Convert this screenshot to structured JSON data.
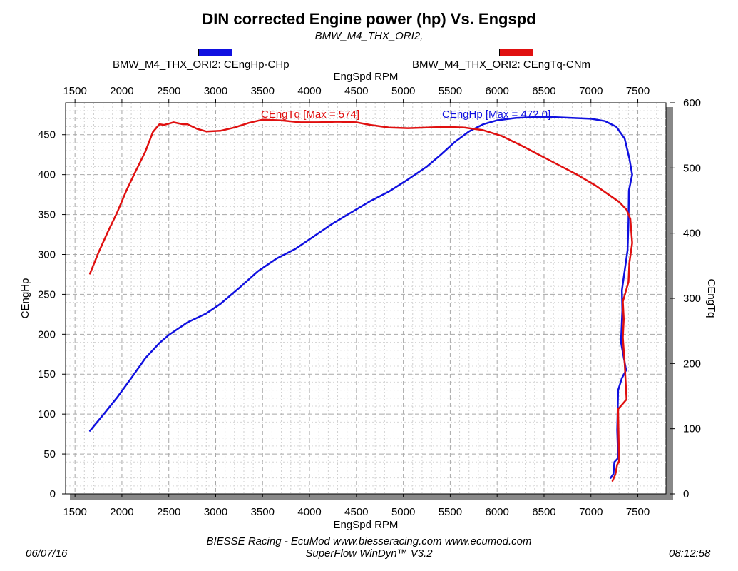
{
  "chart_data": {
    "type": "line",
    "title": "DIN corrected Engine power (hp) Vs. Engspd",
    "subtitle": "BMW_M4_THX_ORI2,",
    "xlabel": "EngSpd RPM",
    "ylabel_left": "CEngHp",
    "ylabel_right": "CEngTq",
    "xlim": [
      1400,
      7800
    ],
    "x_ticks": [
      1500,
      2000,
      2500,
      3000,
      3500,
      4000,
      4500,
      5000,
      5500,
      6000,
      6500,
      7000,
      7500
    ],
    "ylim_left": [
      0,
      490
    ],
    "y_ticks_left": [
      0,
      50,
      100,
      150,
      200,
      250,
      300,
      350,
      400,
      450
    ],
    "ylim_right": [
      0,
      600
    ],
    "y_ticks_right": [
      0,
      100,
      200,
      300,
      400,
      500,
      600
    ],
    "grid": true,
    "series": [
      {
        "name": "BMW_M4_THX_ORI2: CEngHp-CHp",
        "axis": "left",
        "color": "#1010e0",
        "annotation": "CEngHp [Max = 472.0]",
        "points": [
          [
            1660,
            79
          ],
          [
            1800,
            99
          ],
          [
            1950,
            121
          ],
          [
            2100,
            145
          ],
          [
            2250,
            170
          ],
          [
            2400,
            189
          ],
          [
            2500,
            199
          ],
          [
            2700,
            215
          ],
          [
            2900,
            226
          ],
          [
            3050,
            238
          ],
          [
            3250,
            258
          ],
          [
            3450,
            279
          ],
          [
            3650,
            295
          ],
          [
            3850,
            307
          ],
          [
            4050,
            323
          ],
          [
            4250,
            339
          ],
          [
            4450,
            353
          ],
          [
            4650,
            367
          ],
          [
            4850,
            379
          ],
          [
            5050,
            394
          ],
          [
            5250,
            410
          ],
          [
            5400,
            425
          ],
          [
            5550,
            441
          ],
          [
            5700,
            454
          ],
          [
            5850,
            463
          ],
          [
            6000,
            468
          ],
          [
            6200,
            471
          ],
          [
            6400,
            472
          ],
          [
            6600,
            472
          ],
          [
            6800,
            471
          ],
          [
            7000,
            470
          ],
          [
            7150,
            467
          ],
          [
            7270,
            460
          ],
          [
            7360,
            445
          ],
          [
            7410,
            420
          ],
          [
            7440,
            400
          ],
          [
            7405,
            380
          ],
          [
            7400,
            340
          ],
          [
            7390,
            305
          ],
          [
            7360,
            280
          ],
          [
            7330,
            255
          ],
          [
            7335,
            230
          ],
          [
            7320,
            190
          ],
          [
            7375,
            155
          ],
          [
            7330,
            145
          ],
          [
            7290,
            130
          ],
          [
            7280,
            80
          ],
          [
            7290,
            45
          ],
          [
            7250,
            40
          ],
          [
            7240,
            25
          ],
          [
            7210,
            20
          ]
        ]
      },
      {
        "name": "BMW_M4_THX_ORI2: CEngTq-CNm",
        "axis": "right",
        "color": "#e01010",
        "annotation": "CEngTq [Max = 574]",
        "points": [
          [
            1660,
            338
          ],
          [
            1750,
            370
          ],
          [
            1850,
            402
          ],
          [
            1950,
            432
          ],
          [
            2050,
            466
          ],
          [
            2150,
            496
          ],
          [
            2250,
            525
          ],
          [
            2330,
            555
          ],
          [
            2400,
            567
          ],
          [
            2450,
            566
          ],
          [
            2550,
            570
          ],
          [
            2650,
            567
          ],
          [
            2700,
            567
          ],
          [
            2800,
            560
          ],
          [
            2900,
            556
          ],
          [
            3050,
            557
          ],
          [
            3200,
            562
          ],
          [
            3350,
            569
          ],
          [
            3500,
            574
          ],
          [
            3700,
            573
          ],
          [
            3900,
            570
          ],
          [
            4100,
            570
          ],
          [
            4300,
            571
          ],
          [
            4500,
            570
          ],
          [
            4650,
            566
          ],
          [
            4850,
            562
          ],
          [
            5050,
            561
          ],
          [
            5250,
            562
          ],
          [
            5450,
            563
          ],
          [
            5650,
            562
          ],
          [
            5850,
            558
          ],
          [
            6050,
            549
          ],
          [
            6250,
            535
          ],
          [
            6450,
            520
          ],
          [
            6650,
            505
          ],
          [
            6850,
            490
          ],
          [
            7050,
            473
          ],
          [
            7200,
            458
          ],
          [
            7300,
            448
          ],
          [
            7380,
            436
          ],
          [
            7420,
            422
          ],
          [
            7440,
            385
          ],
          [
            7410,
            355
          ],
          [
            7400,
            325
          ],
          [
            7340,
            295
          ],
          [
            7350,
            268
          ],
          [
            7340,
            240
          ],
          [
            7360,
            200
          ],
          [
            7380,
            145
          ],
          [
            7290,
            130
          ],
          [
            7300,
            50
          ],
          [
            7280,
            45
          ],
          [
            7260,
            30
          ],
          [
            7230,
            20
          ]
        ]
      }
    ]
  },
  "footer": {
    "credit": "BIESSE Racing - EcuMod www.biesseracing.com www.ecumod.com",
    "software": "SuperFlow WinDyn™ V3.2",
    "date": "06/07/16",
    "time": "08:12:58"
  }
}
